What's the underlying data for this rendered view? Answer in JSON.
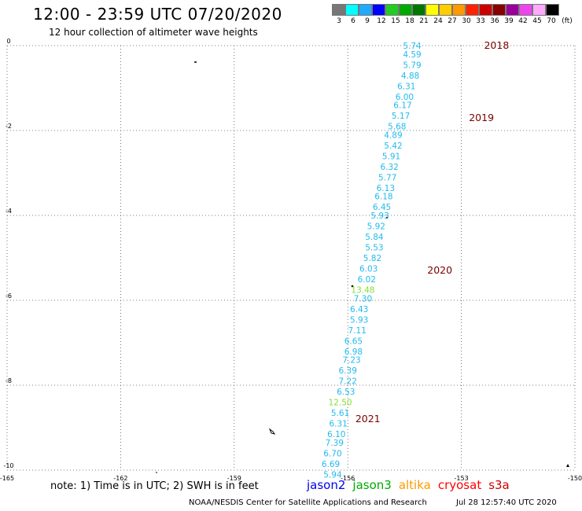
{
  "title": "12:00 - 23:59 UTC 07/20/2020",
  "subtitle": "12 hour collection of altimeter wave heights",
  "legend": {
    "colors": [
      "#777777",
      "#00ffff",
      "#22aaff",
      "#0000ff",
      "#22cc22",
      "#00aa00",
      "#007700",
      "#ffff00",
      "#ffcc00",
      "#ff9900",
      "#ff2200",
      "#cc0000",
      "#880000",
      "#990099",
      "#ee44ee",
      "#ffaaff",
      "#000000"
    ],
    "labels": [
      "3",
      "6",
      "9",
      "12",
      "15",
      "18",
      "21",
      "24",
      "27",
      "30",
      "33",
      "36",
      "39",
      "42",
      "45",
      "70",
      "(ft)"
    ]
  },
  "map": {
    "xrange": [
      -165,
      -150
    ],
    "yrange": [
      -10,
      0
    ],
    "x_ticks": [
      "-165",
      "-162",
      "-159",
      "-156",
      "-153",
      "-150"
    ],
    "y_ticks": [
      "0",
      "-2",
      "-4",
      "-6",
      "-8",
      "-10"
    ],
    "pass_labels": [
      {
        "text": "2018",
        "lon": -152.4,
        "lat": 0.0
      },
      {
        "text": "2019",
        "lon": -152.8,
        "lat": -1.7
      },
      {
        "text": "2020",
        "lon": -153.9,
        "lat": -5.3
      },
      {
        "text": "2021",
        "lon": -155.8,
        "lat": -8.8
      }
    ],
    "observations": [
      {
        "value": "5.74",
        "sat": "jason2",
        "lon": -154.3,
        "lat": 0.0
      },
      {
        "value": "4.59",
        "sat": "jason2",
        "lon": -154.3,
        "lat": -0.2
      },
      {
        "value": "5.79",
        "sat": "jason2",
        "lon": -154.3,
        "lat": -0.45
      },
      {
        "value": "4.88",
        "sat": "jason2",
        "lon": -154.35,
        "lat": -0.7
      },
      {
        "value": "6.31",
        "sat": "jason2",
        "lon": -154.45,
        "lat": -0.95
      },
      {
        "value": "6.00",
        "sat": "jason2",
        "lon": -154.5,
        "lat": -1.2
      },
      {
        "value": "6.17",
        "sat": "jason2",
        "lon": -154.55,
        "lat": -1.4
      },
      {
        "value": "5.17",
        "sat": "jason2",
        "lon": -154.6,
        "lat": -1.65
      },
      {
        "value": "5.68",
        "sat": "jason2",
        "lon": -154.7,
        "lat": -1.9
      },
      {
        "value": "4.89",
        "sat": "jason2",
        "lon": -154.8,
        "lat": -2.1
      },
      {
        "value": "5.42",
        "sat": "jason2",
        "lon": -154.8,
        "lat": -2.35
      },
      {
        "value": "5.91",
        "sat": "jason2",
        "lon": -154.85,
        "lat": -2.6
      },
      {
        "value": "6.32",
        "sat": "jason2",
        "lon": -154.9,
        "lat": -2.85
      },
      {
        "value": "5.77",
        "sat": "jason2",
        "lon": -154.95,
        "lat": -3.1
      },
      {
        "value": "6.13",
        "sat": "jason2",
        "lon": -155.0,
        "lat": -3.35
      },
      {
        "value": "6.18",
        "sat": "jason2",
        "lon": -155.05,
        "lat": -3.55
      },
      {
        "value": "6.45",
        "sat": "jason2",
        "lon": -155.1,
        "lat": -3.8
      },
      {
        "value": "5.93",
        "sat": "jason2",
        "lon": -155.15,
        "lat": -4.0
      },
      {
        "value": "5.92",
        "sat": "jason2",
        "lon": -155.25,
        "lat": -4.25
      },
      {
        "value": "5.84",
        "sat": "jason2",
        "lon": -155.3,
        "lat": -4.5
      },
      {
        "value": "5.53",
        "sat": "jason2",
        "lon": -155.3,
        "lat": -4.75
      },
      {
        "value": "5.82",
        "sat": "jason2",
        "lon": -155.35,
        "lat": -5.0
      },
      {
        "value": "6.03",
        "sat": "jason2",
        "lon": -155.45,
        "lat": -5.25
      },
      {
        "value": "6.02",
        "sat": "jason2",
        "lon": -155.5,
        "lat": -5.5
      },
      {
        "value": "13.48",
        "sat": "jason3",
        "lon": -155.6,
        "lat": -5.75
      },
      {
        "value": "7.30",
        "sat": "jason2",
        "lon": -155.6,
        "lat": -5.95
      },
      {
        "value": "6.43",
        "sat": "jason2",
        "lon": -155.7,
        "lat": -6.2
      },
      {
        "value": "5.93",
        "sat": "jason2",
        "lon": -155.7,
        "lat": -6.45
      },
      {
        "value": "7.11",
        "sat": "jason2",
        "lon": -155.75,
        "lat": -6.7
      },
      {
        "value": "6.65",
        "sat": "jason2",
        "lon": -155.85,
        "lat": -6.95
      },
      {
        "value": "6.98",
        "sat": "jason2",
        "lon": -155.85,
        "lat": -7.2
      },
      {
        "value": "7.23",
        "sat": "jason2",
        "lon": -155.9,
        "lat": -7.4
      },
      {
        "value": "6.39",
        "sat": "jason2",
        "lon": -156.0,
        "lat": -7.65
      },
      {
        "value": "7.22",
        "sat": "jason2",
        "lon": -156.0,
        "lat": -7.9
      },
      {
        "value": "6.53",
        "sat": "jason2",
        "lon": -156.05,
        "lat": -8.15
      },
      {
        "value": "12.50",
        "sat": "jason3",
        "lon": -156.2,
        "lat": -8.4
      },
      {
        "value": "5.61",
        "sat": "jason2",
        "lon": -156.2,
        "lat": -8.65
      },
      {
        "value": "6.31",
        "sat": "jason2",
        "lon": -156.25,
        "lat": -8.9
      },
      {
        "value": "6.10",
        "sat": "jason2",
        "lon": -156.3,
        "lat": -9.15
      },
      {
        "value": "7.39",
        "sat": "jason2",
        "lon": -156.35,
        "lat": -9.35
      },
      {
        "value": "6.70",
        "sat": "jason2",
        "lon": -156.4,
        "lat": -9.6
      },
      {
        "value": "6.69",
        "sat": "jason2",
        "lon": -156.45,
        "lat": -9.85
      },
      {
        "value": "5.94",
        "sat": "jason2",
        "lon": -156.4,
        "lat": -10.1
      }
    ],
    "sat_colors": {
      "jason2": "#22bbee",
      "jason3": "#88dd33"
    }
  },
  "note": "note: 1) Time is in UTC; 2) SWH is in feet",
  "satellites": [
    {
      "name": "jason2",
      "color": "#0000ee"
    },
    {
      "name": "jason3",
      "color": "#00aa00"
    },
    {
      "name": "altika",
      "color": "#ff9900"
    },
    {
      "name": "cryosat",
      "color": "#ff0000"
    },
    {
      "name": "s3a",
      "color": "#cc0000"
    }
  ],
  "footer": {
    "source": "NOAA/NESDIS Center for Satellite Applications and Research",
    "timestamp": "Jul 28 12:57:40 UTC 2020"
  }
}
